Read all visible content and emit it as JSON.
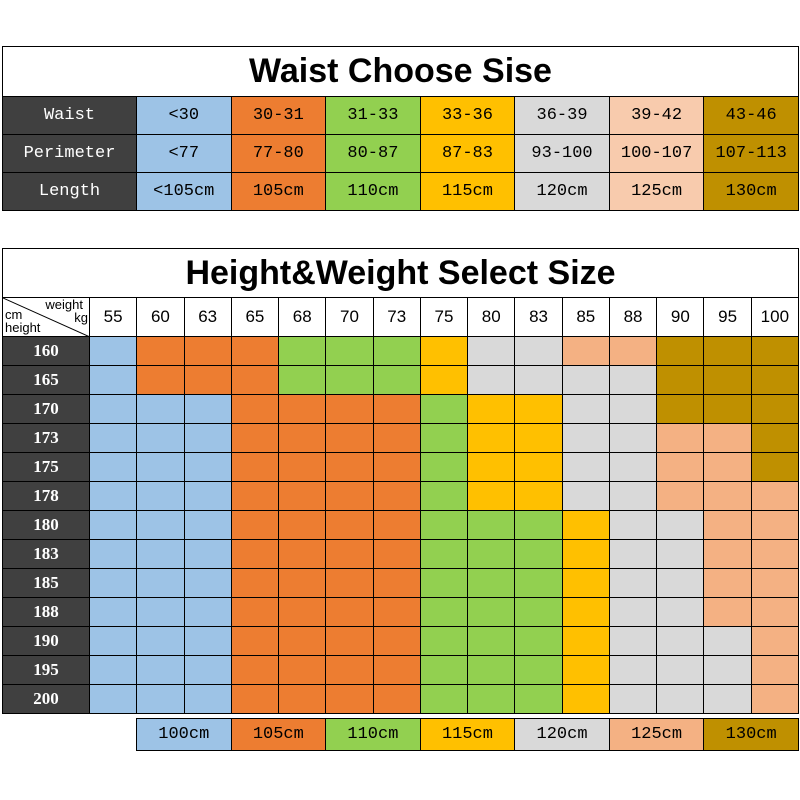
{
  "palette": [
    "#9dc3e6",
    "#ed7d31",
    "#92d050",
    "#ffc000",
    "#d9d9d9",
    "#f4b183",
    "#bf9000"
  ],
  "waist_palette": [
    "#9dc3e6",
    "#ed7d31",
    "#92d050",
    "#ffc000",
    "#d9d9d9",
    "#f8cbad",
    "#bf9000"
  ],
  "waist_table": {
    "title": "Waist Choose Sise",
    "rows": [
      {
        "label": "Waist",
        "values": [
          "<30",
          "30-31",
          "31-33",
          "33-36",
          "36-39",
          "39-42",
          "43-46"
        ]
      },
      {
        "label": "Perimeter",
        "values": [
          "<77",
          "77-80",
          "80-87",
          "87-83",
          "93-100",
          "100-107",
          "107-113"
        ]
      },
      {
        "label": "Length",
        "values": [
          "<105cm",
          "105cm",
          "110cm",
          "115cm",
          "120cm",
          "125cm",
          "130cm"
        ]
      }
    ]
  },
  "hw_table": {
    "title": "Height&Weight Select Size",
    "corner": {
      "top": "weight",
      "unit_top": "kg",
      "unit_left": "cm",
      "left": "height"
    },
    "weights": [
      "55",
      "60",
      "63",
      "65",
      "68",
      "70",
      "73",
      "75",
      "80",
      "83",
      "85",
      "88",
      "90",
      "95",
      "100"
    ],
    "rows": [
      {
        "height": "160",
        "sizes": [
          0,
          1,
          1,
          1,
          2,
          2,
          2,
          3,
          4,
          4,
          5,
          5,
          6,
          6,
          6
        ]
      },
      {
        "height": "165",
        "sizes": [
          0,
          1,
          1,
          1,
          2,
          2,
          2,
          3,
          4,
          4,
          4,
          4,
          6,
          6,
          6
        ]
      },
      {
        "height": "170",
        "sizes": [
          0,
          0,
          0,
          1,
          1,
          1,
          1,
          2,
          3,
          3,
          4,
          4,
          6,
          6,
          6
        ]
      },
      {
        "height": "173",
        "sizes": [
          0,
          0,
          0,
          1,
          1,
          1,
          1,
          2,
          3,
          3,
          4,
          4,
          5,
          5,
          6
        ]
      },
      {
        "height": "175",
        "sizes": [
          0,
          0,
          0,
          1,
          1,
          1,
          1,
          2,
          3,
          3,
          4,
          4,
          5,
          5,
          6
        ]
      },
      {
        "height": "178",
        "sizes": [
          0,
          0,
          0,
          1,
          1,
          1,
          1,
          2,
          3,
          3,
          4,
          4,
          5,
          5,
          5
        ]
      },
      {
        "height": "180",
        "sizes": [
          0,
          0,
          0,
          1,
          1,
          1,
          1,
          2,
          2,
          2,
          3,
          4,
          4,
          5,
          5
        ]
      },
      {
        "height": "183",
        "sizes": [
          0,
          0,
          0,
          1,
          1,
          1,
          1,
          2,
          2,
          2,
          3,
          4,
          4,
          5,
          5
        ]
      },
      {
        "height": "185",
        "sizes": [
          0,
          0,
          0,
          1,
          1,
          1,
          1,
          2,
          2,
          2,
          3,
          4,
          4,
          5,
          5
        ]
      },
      {
        "height": "188",
        "sizes": [
          0,
          0,
          0,
          1,
          1,
          1,
          1,
          2,
          2,
          2,
          3,
          4,
          4,
          5,
          5
        ]
      },
      {
        "height": "190",
        "sizes": [
          0,
          0,
          0,
          1,
          1,
          1,
          1,
          2,
          2,
          2,
          3,
          4,
          4,
          4,
          5
        ]
      },
      {
        "height": "195",
        "sizes": [
          0,
          0,
          0,
          1,
          1,
          1,
          1,
          2,
          2,
          2,
          3,
          4,
          4,
          4,
          5
        ]
      },
      {
        "height": "200",
        "sizes": [
          0,
          0,
          0,
          1,
          1,
          1,
          1,
          2,
          2,
          2,
          3,
          4,
          4,
          4,
          5
        ]
      }
    ]
  },
  "legend": [
    "100cm",
    "105cm",
    "110cm",
    "115cm",
    "120cm",
    "125cm",
    "130cm"
  ]
}
